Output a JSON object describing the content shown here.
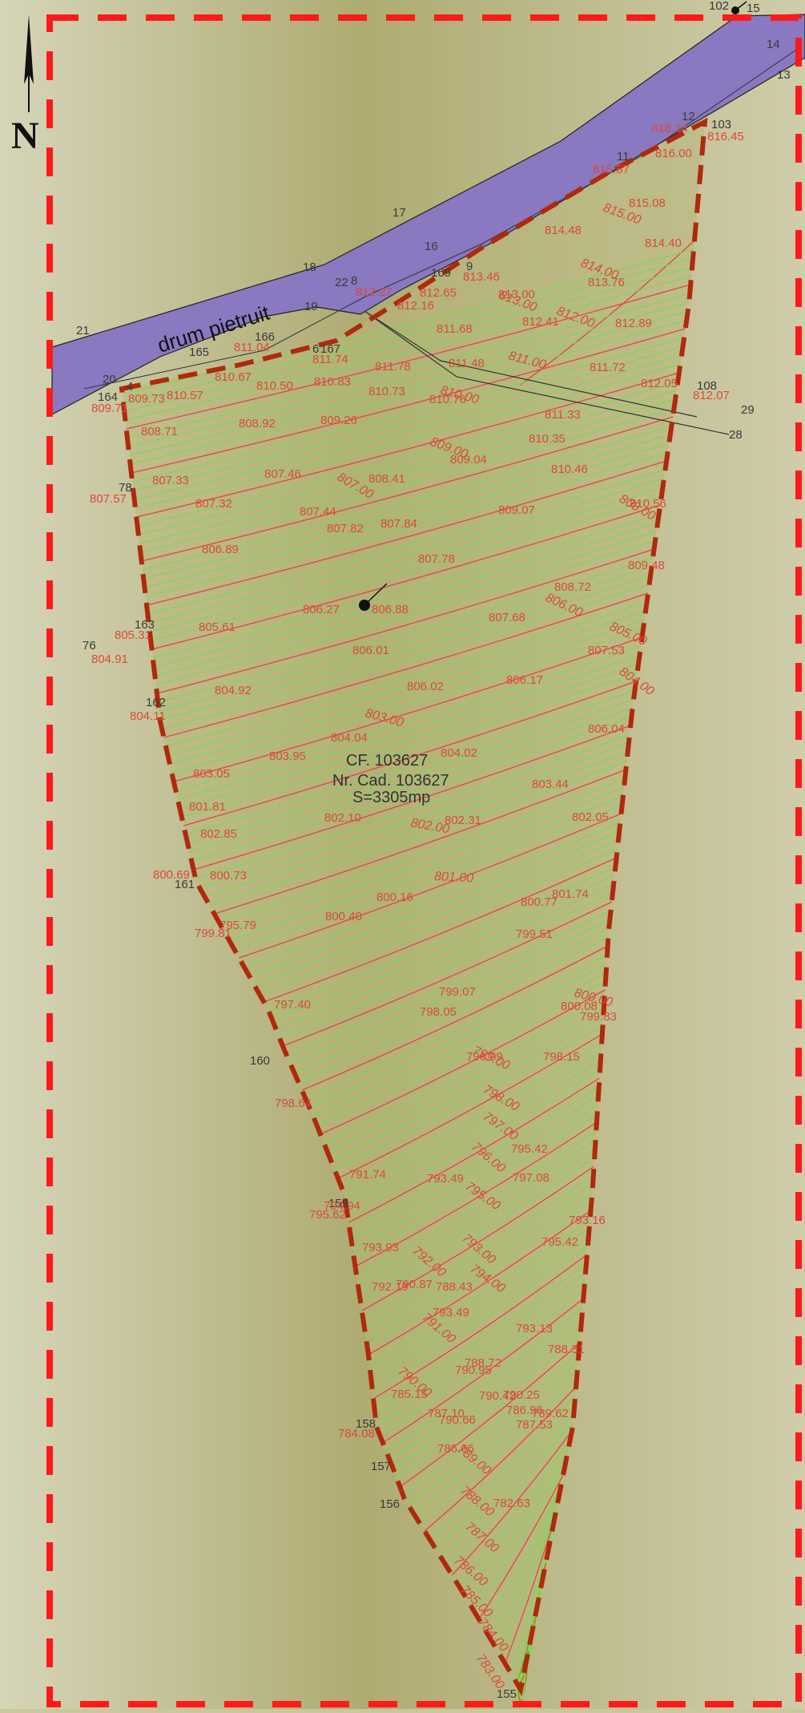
{
  "north_label": "N",
  "road_label": "drum pietruit",
  "parcel_info": {
    "cf": "CF. 103627",
    "cad": "Nr. Cad. 103627",
    "area": "S=3305mp"
  },
  "colors": {
    "background": "#b9b682",
    "road": "#8a78c0",
    "contour_minor": "#6fe04a",
    "contour_major": "#d94a3c",
    "parcel_boundary": "#b0290c",
    "extent_frame": "#ff1a1a"
  },
  "point_numbers": [
    "102",
    "15",
    "14",
    "13",
    "12",
    "103",
    "11",
    "17",
    "16",
    "18",
    "22",
    "8",
    "169",
    "9",
    "19",
    "21",
    "166",
    "165",
    "6",
    "167",
    "20",
    "164",
    "4",
    "108",
    "29",
    "28",
    "78",
    "163",
    "76",
    "162",
    "161",
    "160",
    "159",
    "158",
    "157",
    "156",
    "155"
  ],
  "elevations": [
    "816.34",
    "816.45",
    "816.00",
    "815.57",
    "815.08",
    "814.48",
    "814.40",
    "813.46",
    "813.76",
    "812.27",
    "812.65",
    "812.16",
    "813.00",
    "812.41",
    "812.89",
    "811.68",
    "811.74",
    "811.78",
    "811.48",
    "811.72",
    "812.05",
    "812.07",
    "810.57",
    "811.04",
    "810.67",
    "810.50",
    "810.83",
    "810.73",
    "810.76",
    "811.33",
    "809.73",
    "809.71",
    "810.35",
    "808.92",
    "809.26",
    "808.71",
    "810.46",
    "809.04",
    "807.46",
    "808.41",
    "807.33",
    "807.57",
    "807.32",
    "807.44",
    "807.84",
    "809.07",
    "810.56",
    "807.82",
    "806.89",
    "807.78",
    "809.48",
    "806.88",
    "806.27",
    "807.68",
    "808.72",
    "805.61",
    "805.31",
    "806.01",
    "807.53",
    "804.91",
    "806.02",
    "806.17",
    "804.92",
    "804.11",
    "806.04",
    "804.04",
    "803.95",
    "804.02",
    "803.05",
    "803.44",
    "801.81",
    "802.10",
    "802.31",
    "802.05",
    "802.85",
    "800.73",
    "800.69",
    "801.74",
    "800.16",
    "800.40",
    "800.77",
    "799.81",
    "799.51",
    "800.08",
    "798.05",
    "799.07",
    "799.83",
    "797.40",
    "796.99",
    "798.15",
    "795.79",
    "798.64",
    "795.42",
    "797.08",
    "793.49",
    "795.62",
    "793.16",
    "791.74",
    "795.42",
    "793.93",
    "794.94",
    "792.19",
    "790.87",
    "793.49",
    "793.13",
    "790.25",
    "790.95",
    "790.42",
    "790.66",
    "789.62",
    "788.31",
    "788.43",
    "788.72",
    "787.10",
    "786.66",
    "786.96",
    "787.53",
    "785.15",
    "784.08",
    "782.63"
  ],
  "contour_values": [
    "815.00",
    "814.00",
    "813.00",
    "812.00",
    "811.00",
    "810.00",
    "809.00",
    "808.00",
    "807.00",
    "806.00",
    "805.00",
    "804.00",
    "803.00",
    "802.00",
    "801.00",
    "800.00",
    "799.00",
    "798.00",
    "797.00",
    "796.00",
    "795.00",
    "794.00",
    "793.00",
    "792.00",
    "791.00",
    "790.00",
    "789.00",
    "788.00",
    "787.00",
    "786.00",
    "785.00",
    "784.00",
    "783.00"
  ]
}
